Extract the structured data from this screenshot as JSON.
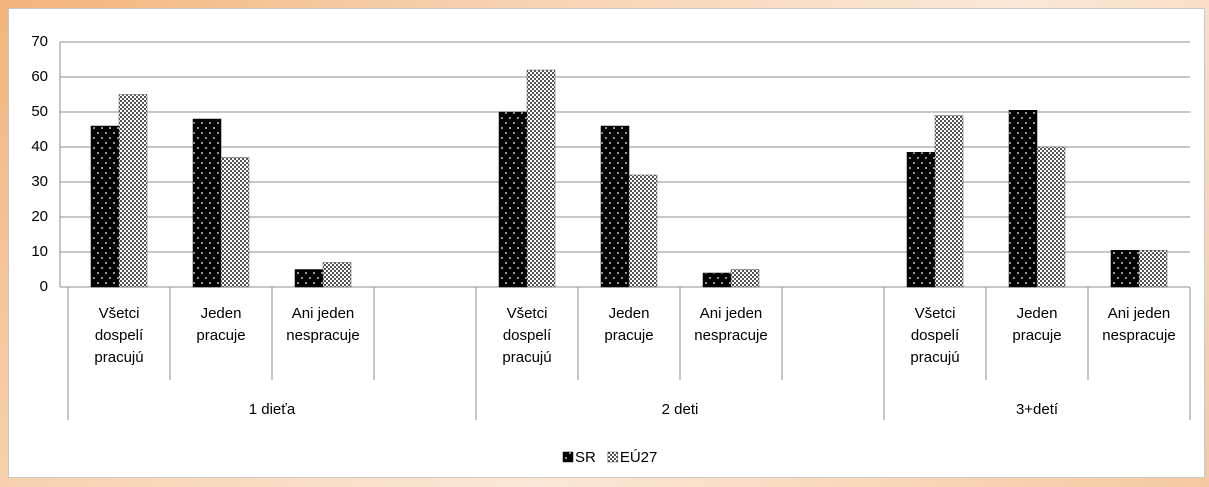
{
  "chart_data": {
    "type": "bar",
    "categories": [
      "Všetci dospelí pracujú",
      "Jeden pracuje",
      "Ani jeden nespracuje",
      null,
      "Všetci dospelí pracujú",
      "Jeden pracuje",
      "Ani jeden nespracuje",
      null,
      "Všetci dospelí pracujú",
      "Jeden pracuje",
      "Ani jeden nespracuje"
    ],
    "groups": [
      "1 dieťa",
      "2 deti",
      "3+detí"
    ],
    "series": [
      {
        "name": "SR",
        "color": "#000000",
        "values": [
          46,
          48,
          5,
          null,
          50,
          46,
          4,
          null,
          38.5,
          50.5,
          10.5
        ]
      },
      {
        "name": "EÚ27",
        "color": "#555555",
        "values": [
          55,
          37,
          7,
          null,
          62,
          32,
          5,
          null,
          49,
          40,
          10.5
        ]
      }
    ],
    "ylim": [
      0,
      70
    ],
    "yticks": [
      0,
      10,
      20,
      30,
      40,
      50,
      60,
      70
    ],
    "grid": true,
    "legend": "bottom"
  }
}
